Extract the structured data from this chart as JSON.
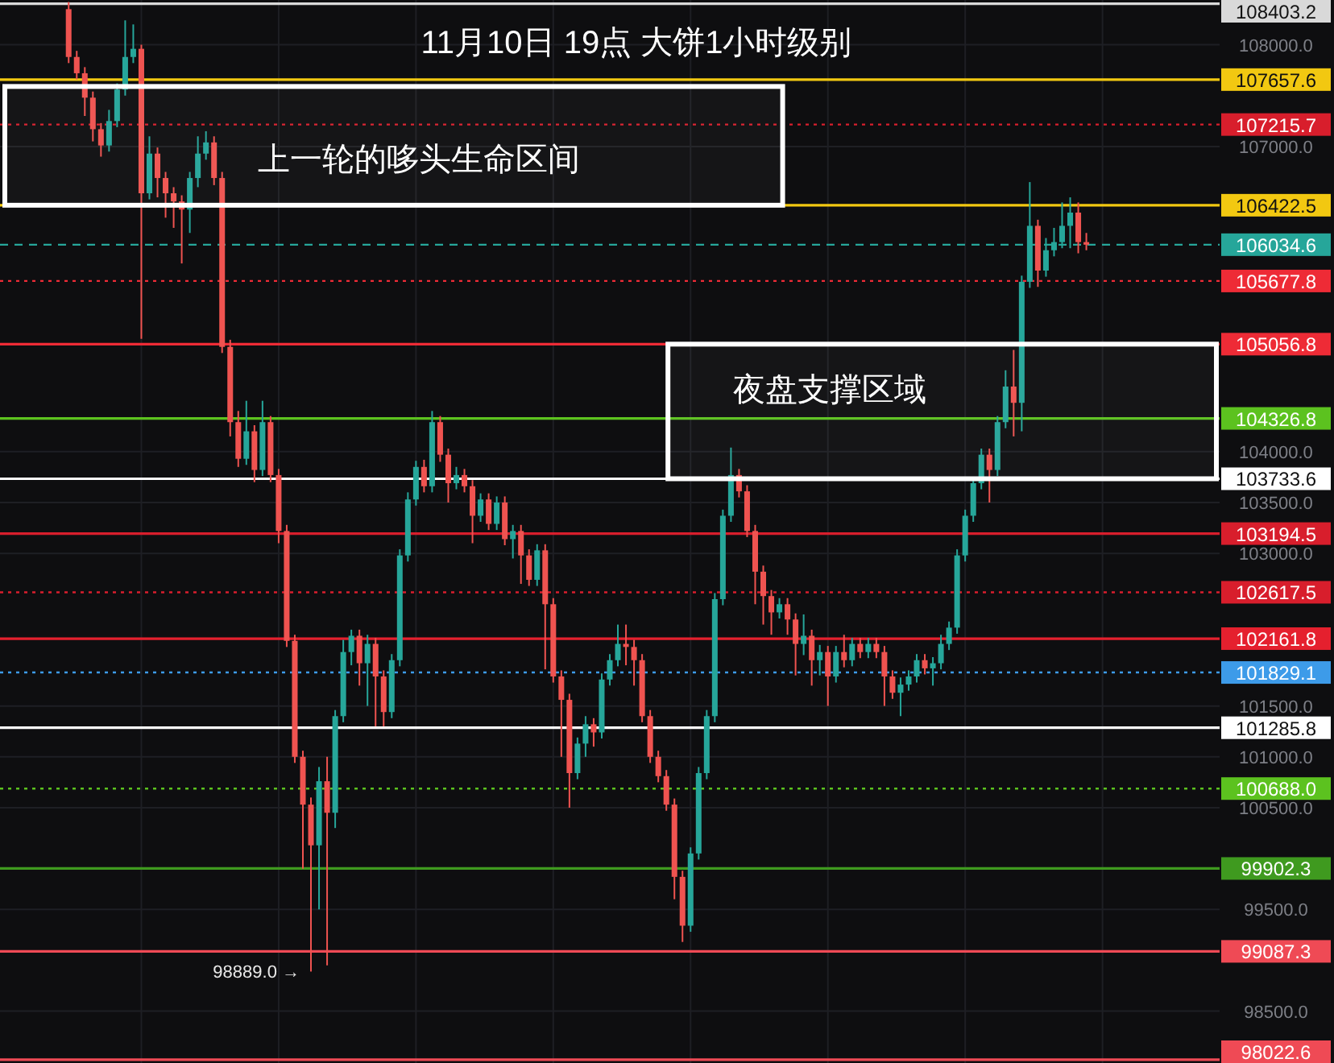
{
  "chart_data": {
    "type": "candlestick",
    "title": "11月10日 19点 大饼1小时级别",
    "categories": [
      null,
      null,
      null,
      null,
      null,
      null,
      null,
      null,
      null,
      null,
      null,
      null,
      null,
      null,
      null,
      null,
      null,
      null,
      null,
      null,
      null,
      null,
      null,
      null,
      null,
      null,
      null,
      null,
      null,
      null,
      null,
      null,
      null,
      null,
      null,
      null,
      null,
      null,
      null,
      null,
      null,
      null,
      null,
      null,
      null,
      null,
      null,
      null,
      null,
      null,
      null,
      null,
      null,
      null,
      null,
      null,
      null,
      null,
      null,
      null,
      null,
      null,
      null,
      null,
      null,
      null,
      null,
      null,
      null,
      null,
      null,
      null,
      null,
      null,
      null,
      null,
      null,
      null,
      null,
      null,
      null,
      null,
      null,
      null,
      null,
      null,
      null,
      null,
      null,
      null,
      null,
      null,
      null,
      null,
      null,
      null,
      null,
      null,
      null,
      null,
      null,
      null,
      null,
      null,
      null,
      null,
      null,
      null,
      null,
      null,
      null,
      null,
      null,
      null,
      null,
      null,
      null,
      null,
      null,
      null,
      null,
      null,
      null,
      null,
      null,
      null,
      null,
      null,
      null,
      null,
      null,
      null,
      null,
      null,
      null,
      null,
      null,
      null,
      null,
      null,
      null,
      null,
      null,
      null,
      null,
      null,
      null,
      null,
      null,
      null,
      null
    ],
    "ohlc": [
      null,
      null,
      null,
      null,
      null,
      null,
      null,
      null,
      [
        108350,
        108420,
        107820,
        107880
      ],
      [
        107880,
        107940,
        107660,
        107720
      ],
      [
        107720,
        107780,
        107300,
        107480
      ],
      [
        107480,
        107540,
        107050,
        107170
      ],
      [
        107170,
        107230,
        106900,
        107010
      ],
      [
        107010,
        107360,
        106950,
        107250
      ],
      [
        107250,
        107620,
        107190,
        107560
      ],
      [
        107560,
        108240,
        107500,
        107880
      ],
      [
        107880,
        108200,
        107820,
        107960
      ],
      [
        107960,
        108000,
        105110,
        106540
      ],
      [
        106540,
        107100,
        106480,
        106930
      ],
      [
        106930,
        106990,
        106500,
        106690
      ],
      [
        106690,
        106750,
        106300,
        106540
      ],
      [
        106540,
        106600,
        106200,
        106460
      ],
      [
        106460,
        106520,
        105850,
        106380
      ],
      [
        106380,
        106750,
        106150,
        106690
      ],
      [
        106690,
        107100,
        106600,
        106930
      ],
      [
        106930,
        107150,
        106870,
        107040
      ],
      [
        107040,
        107100,
        106620,
        106690
      ],
      [
        106690,
        106750,
        104970,
        105030
      ],
      [
        105030,
        105100,
        104150,
        104290
      ],
      [
        104290,
        104400,
        103850,
        103930
      ],
      [
        103930,
        104500,
        103870,
        104200
      ],
      [
        104200,
        104260,
        103700,
        103820
      ],
      [
        103820,
        104500,
        103760,
        104290
      ],
      [
        104290,
        104350,
        103700,
        103770
      ],
      [
        103770,
        103830,
        103100,
        103220
      ],
      [
        103220,
        103280,
        102080,
        102140
      ],
      [
        102140,
        102200,
        100940,
        101000
      ],
      [
        101000,
        101060,
        99900,
        100530
      ],
      [
        100530,
        100600,
        98889.0,
        100130
      ],
      [
        100130,
        100900,
        99500,
        100760
      ],
      [
        100760,
        101000,
        98950,
        100450
      ],
      [
        100450,
        101460,
        100300,
        101400
      ],
      [
        101400,
        102150,
        101340,
        102030
      ],
      [
        102030,
        102250,
        101900,
        102190
      ],
      [
        102190,
        102250,
        101700,
        101920
      ],
      [
        101920,
        102200,
        101500,
        102110
      ],
      [
        102110,
        102170,
        101300,
        101790
      ],
      [
        101790,
        101850,
        101300,
        101440
      ],
      [
        101440,
        102010,
        101380,
        101950
      ],
      [
        101950,
        103040,
        101890,
        102980
      ],
      [
        102980,
        103600,
        102920,
        103530
      ],
      [
        103530,
        103910,
        103470,
        103850
      ],
      [
        103850,
        103920,
        103600,
        103660
      ],
      [
        103660,
        104400,
        103600,
        104290
      ],
      [
        104290,
        104350,
        103900,
        103970
      ],
      [
        103970,
        104030,
        103500,
        103690
      ],
      [
        103690,
        103850,
        103630,
        103770
      ],
      [
        103770,
        103830,
        103600,
        103660
      ],
      [
        103660,
        103720,
        103100,
        103370
      ],
      [
        103370,
        103590,
        103310,
        103530
      ],
      [
        103530,
        103590,
        103230,
        103290
      ],
      [
        103290,
        103560,
        103230,
        103500
      ],
      [
        103500,
        103560,
        103080,
        103140
      ],
      [
        103140,
        103280,
        102950,
        103220
      ],
      [
        103220,
        103280,
        102700,
        102980
      ],
      [
        102980,
        103040,
        102680,
        102740
      ],
      [
        102740,
        103090,
        102680,
        103030
      ],
      [
        103030,
        103090,
        101860,
        102500
      ],
      [
        102500,
        102560,
        101730,
        101790
      ],
      [
        101790,
        101850,
        101000,
        101560
      ],
      [
        101560,
        101620,
        100500,
        100840
      ],
      [
        100840,
        101190,
        100780,
        101130
      ],
      [
        101130,
        101400,
        101000,
        101320
      ],
      [
        101320,
        101380,
        101100,
        101240
      ],
      [
        101240,
        101820,
        101180,
        101760
      ],
      [
        101760,
        102010,
        101700,
        101950
      ],
      [
        101950,
        102300,
        101890,
        102110
      ],
      [
        102110,
        102300,
        101900,
        102080
      ],
      [
        102080,
        102150,
        101700,
        101950
      ],
      [
        101950,
        102010,
        101340,
        101400
      ],
      [
        101400,
        101460,
        100940,
        101000
      ],
      [
        101000,
        101060,
        100750,
        100810
      ],
      [
        100810,
        100870,
        100470,
        100530
      ],
      [
        100530,
        100590,
        99600,
        99820
      ],
      [
        99820,
        99880,
        99180,
        99340
      ],
      [
        99340,
        100110,
        99280,
        100050
      ],
      [
        100050,
        100900,
        99990,
        100840
      ],
      [
        100840,
        101460,
        100780,
        101400
      ],
      [
        101400,
        102610,
        101340,
        102550
      ],
      [
        102550,
        103430,
        102490,
        103370
      ],
      [
        103370,
        104040,
        103310,
        103770
      ],
      [
        103770,
        103830,
        103550,
        103610
      ],
      [
        103610,
        103670,
        103160,
        103220
      ],
      [
        103220,
        103280,
        102500,
        102820
      ],
      [
        102820,
        102880,
        102300,
        102580
      ],
      [
        102580,
        102640,
        102200,
        102420
      ],
      [
        102420,
        102560,
        102360,
        102500
      ],
      [
        102500,
        102560,
        102200,
        102350
      ],
      [
        102350,
        102410,
        101800,
        102110
      ],
      [
        102110,
        102400,
        102000,
        102190
      ],
      [
        102190,
        102250,
        101700,
        101950
      ],
      [
        101950,
        102100,
        101800,
        102030
      ],
      [
        102030,
        102090,
        101500,
        101790
      ],
      [
        101790,
        102090,
        101730,
        102030
      ],
      [
        102030,
        102200,
        101880,
        101950
      ],
      [
        101950,
        102170,
        101890,
        102110
      ],
      [
        102110,
        102170,
        101970,
        102030
      ],
      [
        102030,
        102170,
        101970,
        102110
      ],
      [
        102110,
        102170,
        101970,
        102030
      ],
      [
        102030,
        102090,
        101500,
        101790
      ],
      [
        101790,
        101850,
        101570,
        101630
      ],
      [
        101630,
        101780,
        101400,
        101710
      ],
      [
        101710,
        101850,
        101650,
        101790
      ],
      [
        101790,
        102010,
        101730,
        101950
      ],
      [
        101950,
        102010,
        101810,
        101870
      ],
      [
        101870,
        101980,
        101700,
        101920
      ],
      [
        101920,
        102200,
        101860,
        102110
      ],
      [
        102110,
        102330,
        102050,
        102270
      ],
      [
        102270,
        103040,
        102210,
        102980
      ],
      [
        102980,
        103430,
        102920,
        103370
      ],
      [
        103370,
        103750,
        103310,
        103690
      ],
      [
        103690,
        104030,
        103630,
        103970
      ],
      [
        103970,
        104030,
        103500,
        103820
      ],
      [
        103820,
        104350,
        103760,
        104290
      ],
      [
        104290,
        104800,
        104230,
        104640
      ],
      [
        104640,
        105000,
        104150,
        104480
      ],
      [
        104480,
        105730,
        104200,
        105670
      ],
      [
        105670,
        106650,
        105610,
        106220
      ],
      [
        106220,
        106280,
        105620,
        105780
      ],
      [
        105780,
        106100,
        105720,
        105980
      ],
      [
        105980,
        106200,
        105920,
        106060
      ],
      [
        106060,
        106450,
        106000,
        106220
      ],
      [
        106220,
        106500,
        106000,
        106350
      ],
      [
        106350,
        106450,
        105950,
        106060
      ],
      [
        106060,
        106150,
        105980,
        106034.6
      ],
      null,
      null,
      null,
      null,
      null,
      null,
      null,
      null,
      null,
      null,
      null,
      null,
      null,
      null,
      null,
      null
    ],
    "ylim": [
      97990,
      108440
    ],
    "yticks": [
      {
        "value": 108000,
        "label": "108000.0"
      },
      {
        "value": 107000,
        "label": "107000.0"
      },
      {
        "value": 104000,
        "label": "104000.0"
      },
      {
        "value": 103500,
        "label": "103500.0"
      },
      {
        "value": 103000,
        "label": "103000.0"
      },
      {
        "value": 101500,
        "label": "101500.0"
      },
      {
        "value": 101000,
        "label": "101000.0"
      },
      {
        "value": 100500,
        "label": "100500.0"
      },
      {
        "value": 99500,
        "label": "99500.0"
      },
      {
        "value": 98500,
        "label": "98500.0"
      }
    ],
    "grid": true,
    "ref_lines": [
      {
        "axis": "y",
        "value": 108403.2,
        "label": "108403.2",
        "color": "#d9d9d9",
        "line_style": "solid"
      },
      {
        "axis": "y",
        "value": 107657.6,
        "label": "107657.6",
        "color": "#f2c811",
        "line_style": "solid"
      },
      {
        "axis": "y",
        "value": 107215.7,
        "label": "107215.7",
        "color": "#d81e2c",
        "line_style": "dotted"
      },
      {
        "axis": "y",
        "value": 106422.5,
        "label": "106422.5",
        "color": "#f2c811",
        "line_style": "solid"
      },
      {
        "axis": "y",
        "value": 106034.6,
        "label": "106034.6",
        "color": "#26a69a",
        "line_style": "dashed"
      },
      {
        "axis": "y",
        "value": 105677.8,
        "label": "105677.8",
        "color": "#ee2b36",
        "line_style": "dotted"
      },
      {
        "axis": "y",
        "value": 105056.8,
        "label": "105056.8",
        "color": "#ee2b36",
        "line_style": "solid"
      },
      {
        "axis": "y",
        "value": 104326.8,
        "label": "104326.8",
        "color": "#5cc21f",
        "line_style": "solid"
      },
      {
        "axis": "y",
        "value": 103733.6,
        "label": "103733.6",
        "color": "#ffffff",
        "line_style": "solid"
      },
      {
        "axis": "y",
        "value": 103194.5,
        "label": "103194.5",
        "color": "#d81e2c",
        "line_style": "solid"
      },
      {
        "axis": "y",
        "value": 102617.5,
        "label": "102617.5",
        "color": "#d81e2c",
        "line_style": "dotted"
      },
      {
        "axis": "y",
        "value": 102161.8,
        "label": "102161.8",
        "color": "#e5202e",
        "line_style": "solid"
      },
      {
        "axis": "y",
        "value": 101829.1,
        "label": "101829.1",
        "color": "#3d9be9",
        "line_style": "dotted"
      },
      {
        "axis": "y",
        "value": 101285.8,
        "label": "101285.8",
        "color": "#ffffff",
        "line_style": "solid"
      },
      {
        "axis": "y",
        "value": 100688.0,
        "label": "100688.0",
        "color": "#5cc21f",
        "line_style": "dotted"
      },
      {
        "axis": "y",
        "value": 99902.3,
        "label": "99902.3",
        "color": "#3f9a1f",
        "line_style": "solid"
      },
      {
        "axis": "y",
        "value": 99087.3,
        "label": "99087.3",
        "color": "#ef4a55",
        "line_style": "solid"
      },
      {
        "axis": "y",
        "value": 98022.6,
        "label": "98022.6",
        "color": "#ef4a55",
        "line_style": "solid"
      }
    ],
    "bands": [
      {
        "axis": "y",
        "from": 106422.5,
        "to": 107590,
        "label": "上一轮的哆头生命区间",
        "color": "#ffffff"
      },
      {
        "axis": "y",
        "from": 103733.6,
        "to": 105056.8,
        "label": "夜盘支撑区域",
        "color": "#ffffff"
      }
    ],
    "annotations": [
      "98889.0 →"
    ]
  }
}
